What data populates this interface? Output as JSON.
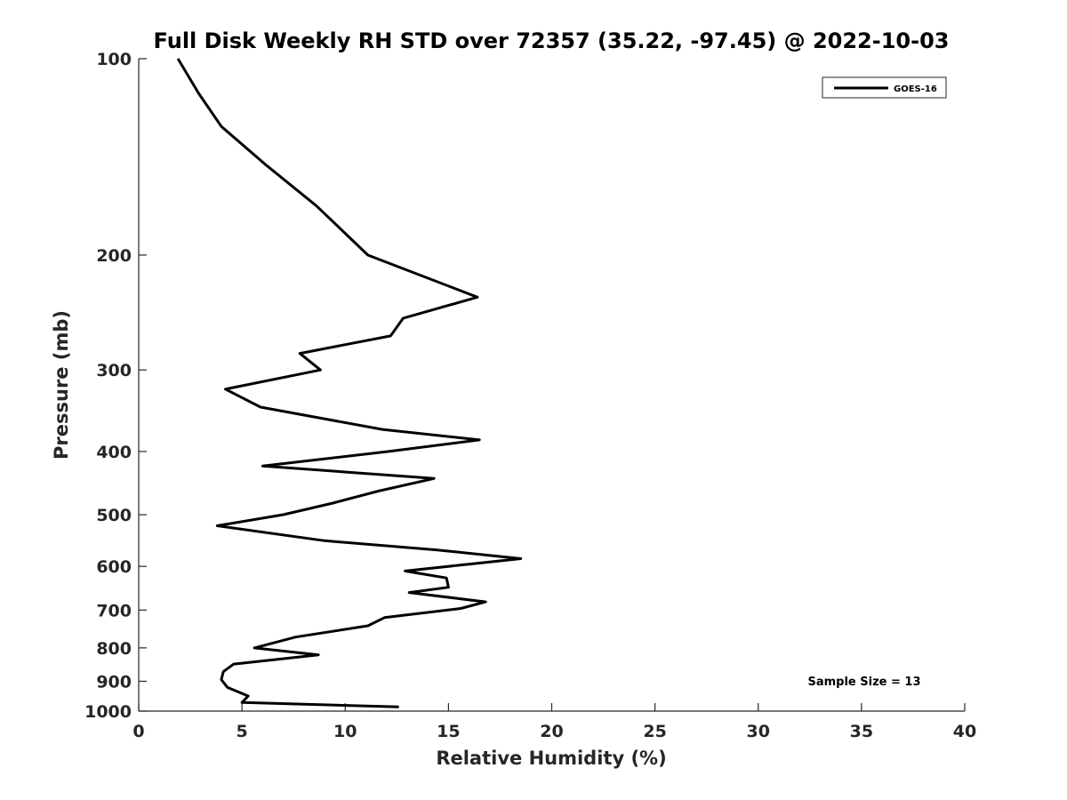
{
  "chart_data": {
    "type": "line",
    "title": "Full Disk Weekly RH STD over 72357 (35.22, -97.45) @ 2022-10-03",
    "xlabel": "Relative Humidity (%)",
    "ylabel": "Pressure (mb)",
    "xlim": [
      0,
      40
    ],
    "ylim": [
      1000,
      100
    ],
    "yscale": "log",
    "xticks": [
      0,
      5,
      10,
      15,
      20,
      25,
      30,
      35,
      40
    ],
    "yticks": [
      100,
      200,
      300,
      400,
      500,
      600,
      700,
      800,
      900,
      1000
    ],
    "grid": false,
    "legend": {
      "entries": [
        "GOES-16"
      ],
      "location": "top-right"
    },
    "annotation": "Sample Size = 13",
    "series": [
      {
        "name": "GOES-16",
        "color": "#000000",
        "x": [
          1.9,
          2.9,
          4.0,
          6.1,
          8.6,
          11.1,
          16.4,
          12.8,
          12.2,
          7.8,
          8.8,
          4.2,
          5.9,
          11.8,
          16.5,
          12.1,
          6.0,
          14.3,
          11.6,
          9.4,
          7.0,
          3.8,
          9.0,
          14.4,
          18.5,
          12.9,
          14.9,
          15.0,
          13.1,
          16.8,
          15.6,
          11.9,
          11.1,
          7.6,
          5.6,
          8.7,
          4.6,
          4.1,
          4.0,
          4.3,
          5.3,
          5.0,
          12.6
        ],
        "y": [
          100,
          113,
          127,
          145,
          168,
          200,
          232,
          250,
          266,
          283,
          300,
          321,
          342,
          370,
          384,
          400,
          421,
          440,
          460,
          480,
          500,
          520,
          548,
          566,
          584,
          610,
          625,
          646,
          658,
          680,
          696,
          719,
          740,
          770,
          800,
          820,
          847,
          870,
          895,
          920,
          948,
          970,
          985
        ]
      }
    ]
  }
}
